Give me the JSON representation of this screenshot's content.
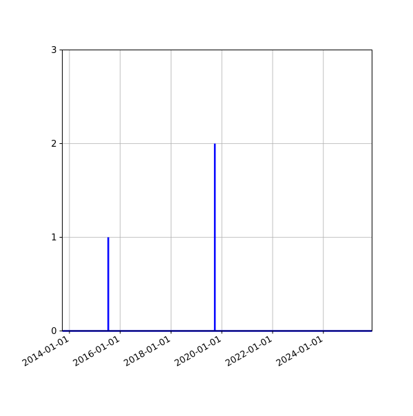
{
  "chart_data": {
    "type": "line",
    "title": "",
    "xlabel": "",
    "ylabel": "",
    "xlim": [
      "2013-09-20",
      "2025-12-01"
    ],
    "ylim": [
      0,
      3
    ],
    "grid": true,
    "x_ticks": [
      "2014-01-01",
      "2016-01-01",
      "2018-01-01",
      "2020-01-01",
      "2022-01-01",
      "2024-01-01"
    ],
    "y_ticks": [
      "0",
      "1",
      "2",
      "3"
    ],
    "series": [
      {
        "color": "#0000ff",
        "points": [
          {
            "x": "2013-09-20",
            "y": 0
          },
          {
            "x": "2015-07-13",
            "y": 0
          },
          {
            "x": "2015-07-13",
            "y": 1
          },
          {
            "x": "2015-07-13",
            "y": 0
          },
          {
            "x": "2019-09-23",
            "y": 0
          },
          {
            "x": "2019-09-23",
            "y": 2
          },
          {
            "x": "2019-09-23",
            "y": 0
          },
          {
            "x": "2025-12-01",
            "y": 0
          }
        ]
      }
    ]
  }
}
